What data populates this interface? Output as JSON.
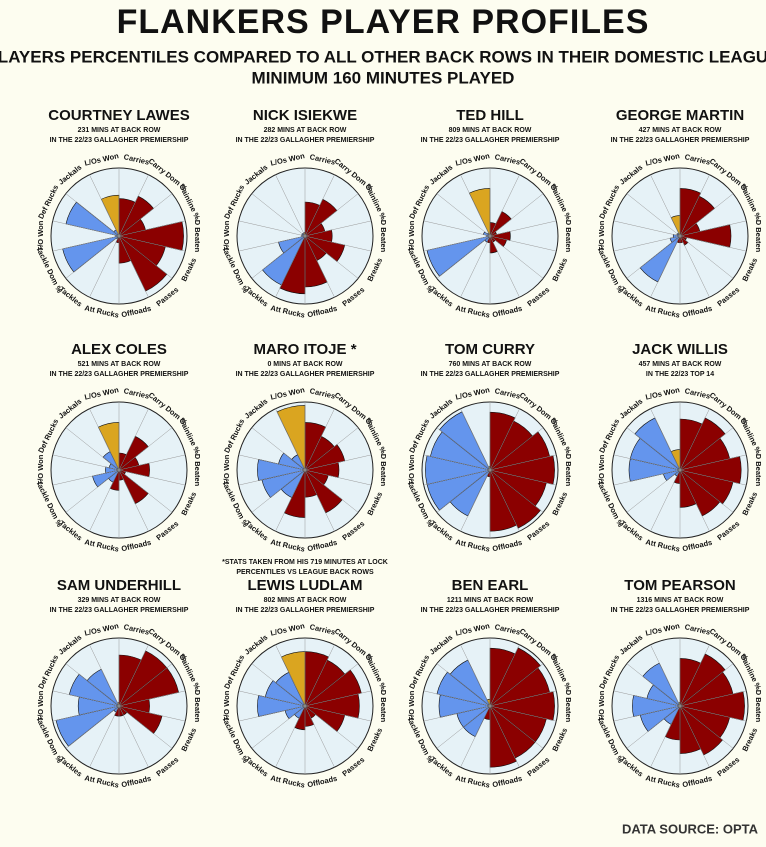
{
  "title": "FLANKERS PLAYER PROFILES",
  "subtitle": [
    "PLAYERS PERCENTILES COMPARED TO ALL OTHER BACK ROWS IN THEIR DOMESTIC LEAGUE",
    "MINIMUM 160 MINUTES PLAYED"
  ],
  "source": "DATA SOURCE: OPTA",
  "chart_data": [
    {
      "type": "polar-bar",
      "title": "COURTNEY LAWES",
      "subtitle": [
        "231 MINS AT BACK ROW",
        "IN THE 22/23 GALLAGHER PREMIERSHIP"
      ],
      "categories": [
        "Carries",
        "Carry Dom %",
        "Gainline %",
        "D Beaten",
        "Breaks",
        "Passes",
        "Offloads",
        "Att Rucks",
        "Tackles",
        "Tackle Dom %",
        "T/O Won",
        "Def Rucks",
        "Jackals",
        "L/Os Won"
      ],
      "values": [
        55,
        65,
        40,
        95,
        70,
        90,
        40,
        10,
        5,
        85,
        5,
        80,
        10,
        60
      ],
      "colors": [
        "#8b0000",
        "#8b0000",
        "#8b0000",
        "#8b0000",
        "#8b0000",
        "#8b0000",
        "#8b0000",
        "#8b0000",
        "#6495ed",
        "#6495ed",
        "#6495ed",
        "#6495ed",
        "#6495ed",
        "#daa520"
      ],
      "ylim": [
        0,
        100
      ]
    },
    {
      "type": "polar-bar",
      "title": "NICK ISIEKWE",
      "subtitle": [
        "282 MINS AT BACK ROW",
        "IN THE 22/23 GALLAGHER PREMIERSHIP"
      ],
      "categories": [
        "Carries",
        "Carry Dom %",
        "Gainline %",
        "D Beaten",
        "Breaks",
        "Passes",
        "Offloads",
        "Att Rucks",
        "Tackles",
        "Tackle Dom %",
        "T/O Won",
        "Def Rucks",
        "Jackals",
        "L/Os Won"
      ],
      "values": [
        50,
        60,
        30,
        40,
        60,
        40,
        75,
        85,
        80,
        40,
        5,
        5,
        5,
        5
      ],
      "colors": [
        "#8b0000",
        "#8b0000",
        "#8b0000",
        "#8b0000",
        "#8b0000",
        "#8b0000",
        "#8b0000",
        "#8b0000",
        "#6495ed",
        "#6495ed",
        "#6495ed",
        "#6495ed",
        "#6495ed",
        "#daa520"
      ],
      "ylim": [
        0,
        100
      ]
    },
    {
      "type": "polar-bar",
      "title": "TED HILL",
      "subtitle": [
        "809 MINS AT BACK ROW",
        "IN THE 22/23 GALLAGHER PREMIERSHIP"
      ],
      "categories": [
        "Carries",
        "Carry Dom %",
        "Gainline %",
        "D Beaten",
        "Breaks",
        "Passes",
        "Offloads",
        "Att Rucks",
        "Tackles",
        "Tackle Dom %",
        "T/O Won",
        "Def Rucks",
        "Jackals",
        "L/Os Won"
      ],
      "values": [
        20,
        40,
        10,
        30,
        25,
        10,
        25,
        10,
        10,
        95,
        5,
        10,
        5,
        70
      ],
      "colors": [
        "#8b0000",
        "#8b0000",
        "#8b0000",
        "#8b0000",
        "#8b0000",
        "#8b0000",
        "#8b0000",
        "#8b0000",
        "#6495ed",
        "#6495ed",
        "#6495ed",
        "#6495ed",
        "#6495ed",
        "#daa520"
      ],
      "ylim": [
        0,
        100
      ]
    },
    {
      "type": "polar-bar",
      "title": "GEORGE MARTIN",
      "subtitle": [
        "427 MINS AT BACK ROW",
        "IN THE 22/23 GALLAGHER PREMIERSHIP"
      ],
      "categories": [
        "Carries",
        "Carry Dom %",
        "Gainline %",
        "D Beaten",
        "Breaks",
        "Passes",
        "Offloads",
        "Att Rucks",
        "Tackles",
        "Tackle Dom %",
        "T/O Won",
        "Def Rucks",
        "Jackals",
        "L/Os Won"
      ],
      "values": [
        70,
        65,
        30,
        75,
        10,
        15,
        10,
        10,
        75,
        15,
        10,
        5,
        5,
        30
      ],
      "colors": [
        "#8b0000",
        "#8b0000",
        "#8b0000",
        "#8b0000",
        "#8b0000",
        "#8b0000",
        "#8b0000",
        "#8b0000",
        "#6495ed",
        "#6495ed",
        "#6495ed",
        "#6495ed",
        "#6495ed",
        "#daa520"
      ],
      "ylim": [
        0,
        100
      ]
    },
    {
      "type": "polar-bar",
      "title": "ALEX COLES",
      "subtitle": [
        "521 MINS AT BACK ROW",
        "IN THE 22/23 GALLAGHER PREMIERSHIP"
      ],
      "categories": [
        "Carries",
        "Carry Dom %",
        "Gainline %",
        "D Beaten",
        "Breaks",
        "Passes",
        "Offloads",
        "Att Rucks",
        "Tackles",
        "Tackle Dom %",
        "T/O Won",
        "Def Rucks",
        "Jackals",
        "L/Os Won"
      ],
      "values": [
        25,
        55,
        30,
        45,
        10,
        55,
        15,
        30,
        20,
        40,
        20,
        15,
        30,
        70
      ],
      "colors": [
        "#8b0000",
        "#8b0000",
        "#8b0000",
        "#8b0000",
        "#8b0000",
        "#8b0000",
        "#8b0000",
        "#8b0000",
        "#6495ed",
        "#6495ed",
        "#6495ed",
        "#6495ed",
        "#6495ed",
        "#daa520"
      ],
      "ylim": [
        0,
        100
      ]
    },
    {
      "type": "polar-bar",
      "title": "MARO ITOJE *",
      "subtitle": [
        "0 MINS AT BACK ROW",
        "IN THE 22/23 GALLAGHER PREMIERSHIP"
      ],
      "note": [
        "*STATS TAKEN FROM HIS 719 MINUTES AT LOCK",
        "PERCENTILES VS LEAGUE BACK ROWS"
      ],
      "categories": [
        "Carries",
        "Carry Dom %",
        "Gainline %",
        "D Beaten",
        "Breaks",
        "Passes",
        "Offloads",
        "Att Rucks",
        "Tackles",
        "Tackle Dom %",
        "T/O Won",
        "Def Rucks",
        "Jackals",
        "L/Os Won"
      ],
      "values": [
        70,
        55,
        60,
        50,
        35,
        70,
        40,
        70,
        45,
        65,
        70,
        40,
        25,
        95
      ],
      "colors": [
        "#8b0000",
        "#8b0000",
        "#8b0000",
        "#8b0000",
        "#8b0000",
        "#8b0000",
        "#8b0000",
        "#8b0000",
        "#6495ed",
        "#6495ed",
        "#6495ed",
        "#6495ed",
        "#6495ed",
        "#daa520"
      ],
      "ylim": [
        0,
        100
      ]
    },
    {
      "type": "polar-bar",
      "title": "TOM CURRY",
      "subtitle": [
        "760 MINS AT BACK ROW",
        "IN THE 22/23 GALLAGHER PREMIERSHIP"
      ],
      "categories": [
        "Carries",
        "Carry Dom %",
        "Gainline %",
        "D Beaten",
        "Breaks",
        "Passes",
        "Offloads",
        "Att Rucks",
        "Tackles",
        "Tackle Dom %",
        "T/O Won",
        "Def Rucks",
        "Jackals",
        "L/Os Won"
      ],
      "values": [
        85,
        80,
        90,
        95,
        85,
        95,
        90,
        10,
        75,
        95,
        95,
        90,
        95,
        5
      ],
      "colors": [
        "#8b0000",
        "#8b0000",
        "#8b0000",
        "#8b0000",
        "#8b0000",
        "#8b0000",
        "#8b0000",
        "#8b0000",
        "#6495ed",
        "#6495ed",
        "#6495ed",
        "#6495ed",
        "#6495ed",
        "#daa520"
      ],
      "ylim": [
        0,
        100
      ]
    },
    {
      "type": "polar-bar",
      "title": "JACK WILLIS",
      "subtitle": [
        "457 MINS AT BACK ROW",
        "IN THE 22/23 TOP 14"
      ],
      "categories": [
        "Carries",
        "Carry Dom %",
        "Gainline %",
        "D Beaten",
        "Breaks",
        "Passes",
        "Offloads",
        "Att Rucks",
        "Tackles",
        "Tackle Dom %",
        "T/O Won",
        "Def Rucks",
        "Jackals",
        "L/Os Won"
      ],
      "values": [
        75,
        85,
        75,
        90,
        80,
        75,
        55,
        20,
        10,
        25,
        75,
        75,
        85,
        30
      ],
      "colors": [
        "#8b0000",
        "#8b0000",
        "#8b0000",
        "#8b0000",
        "#8b0000",
        "#8b0000",
        "#8b0000",
        "#8b0000",
        "#6495ed",
        "#6495ed",
        "#6495ed",
        "#6495ed",
        "#6495ed",
        "#daa520"
      ],
      "ylim": [
        0,
        100
      ]
    },
    {
      "type": "polar-bar",
      "title": "SAM UNDERHILL",
      "subtitle": [
        "329 MINS AT BACK ROW",
        "IN THE 22/23 GALLAGHER PREMIERSHIP"
      ],
      "categories": [
        "Carries",
        "Carry Dom %",
        "Gainline %",
        "D Beaten",
        "Breaks",
        "Passes",
        "Offloads",
        "Att Rucks",
        "Tackles",
        "Tackle Dom %",
        "T/O Won",
        "Def Rucks",
        "Jackals",
        "L/Os Won"
      ],
      "values": [
        75,
        90,
        90,
        45,
        65,
        15,
        15,
        15,
        10,
        95,
        60,
        75,
        60,
        5
      ],
      "colors": [
        "#8b0000",
        "#8b0000",
        "#8b0000",
        "#8b0000",
        "#8b0000",
        "#8b0000",
        "#8b0000",
        "#8b0000",
        "#6495ed",
        "#6495ed",
        "#6495ed",
        "#6495ed",
        "#6495ed",
        "#daa520"
      ],
      "ylim": [
        0,
        100
      ]
    },
    {
      "type": "polar-bar",
      "title": "LEWIS LUDLAM",
      "subtitle": [
        "802 MINS AT BACK ROW",
        "IN THE 22/23 GALLAGHER PREMIERSHIP"
      ],
      "categories": [
        "Carries",
        "Carry Dom %",
        "Gainline %",
        "D Beaten",
        "Breaks",
        "Passes",
        "Offloads",
        "Att Rucks",
        "Tackles",
        "Tackle Dom %",
        "T/O Won",
        "Def Rucks",
        "Jackals",
        "L/Os Won"
      ],
      "values": [
        80,
        75,
        85,
        80,
        60,
        20,
        30,
        35,
        20,
        30,
        70,
        60,
        55,
        80
      ],
      "colors": [
        "#8b0000",
        "#8b0000",
        "#8b0000",
        "#8b0000",
        "#8b0000",
        "#8b0000",
        "#8b0000",
        "#8b0000",
        "#6495ed",
        "#6495ed",
        "#6495ed",
        "#6495ed",
        "#6495ed",
        "#daa520"
      ],
      "ylim": [
        0,
        100
      ]
    },
    {
      "type": "polar-bar",
      "title": "BEN EARL",
      "subtitle": [
        "1211 MINS AT BACK ROW",
        "IN THE 22/23 GALLAGHER PREMIERSHIP"
      ],
      "categories": [
        "Carries",
        "Carry Dom %",
        "Gainline %",
        "D Beaten",
        "Breaks",
        "Passes",
        "Offloads",
        "Att Rucks",
        "Tackles",
        "Tackle Dom %",
        "T/O Won",
        "Def Rucks",
        "Jackals",
        "L/Os Won"
      ],
      "values": [
        85,
        95,
        90,
        95,
        85,
        85,
        90,
        20,
        50,
        50,
        75,
        80,
        75,
        10
      ],
      "colors": [
        "#8b0000",
        "#8b0000",
        "#8b0000",
        "#8b0000",
        "#8b0000",
        "#8b0000",
        "#8b0000",
        "#8b0000",
        "#6495ed",
        "#6495ed",
        "#6495ed",
        "#6495ed",
        "#6495ed",
        "#daa520"
      ],
      "ylim": [
        0,
        100
      ]
    },
    {
      "type": "polar-bar",
      "title": "TOM PEARSON",
      "subtitle": [
        "1316 MINS AT BACK ROW",
        "IN THE 22/23 GALLAGHER PREMIERSHIP"
      ],
      "categories": [
        "Carries",
        "Carry Dom %",
        "Gainline %",
        "D Beaten",
        "Breaks",
        "Passes",
        "Offloads",
        "Att Rucks",
        "Tackles",
        "Tackle Dom %",
        "T/O Won",
        "Def Rucks",
        "Jackals",
        "L/Os Won"
      ],
      "values": [
        70,
        85,
        80,
        95,
        75,
        80,
        70,
        50,
        30,
        60,
        70,
        50,
        70,
        5
      ],
      "colors": [
        "#8b0000",
        "#8b0000",
        "#8b0000",
        "#8b0000",
        "#8b0000",
        "#8b0000",
        "#8b0000",
        "#8b0000",
        "#6495ed",
        "#6495ed",
        "#6495ed",
        "#6495ed",
        "#6495ed",
        "#daa520"
      ],
      "ylim": [
        0,
        100
      ]
    }
  ]
}
